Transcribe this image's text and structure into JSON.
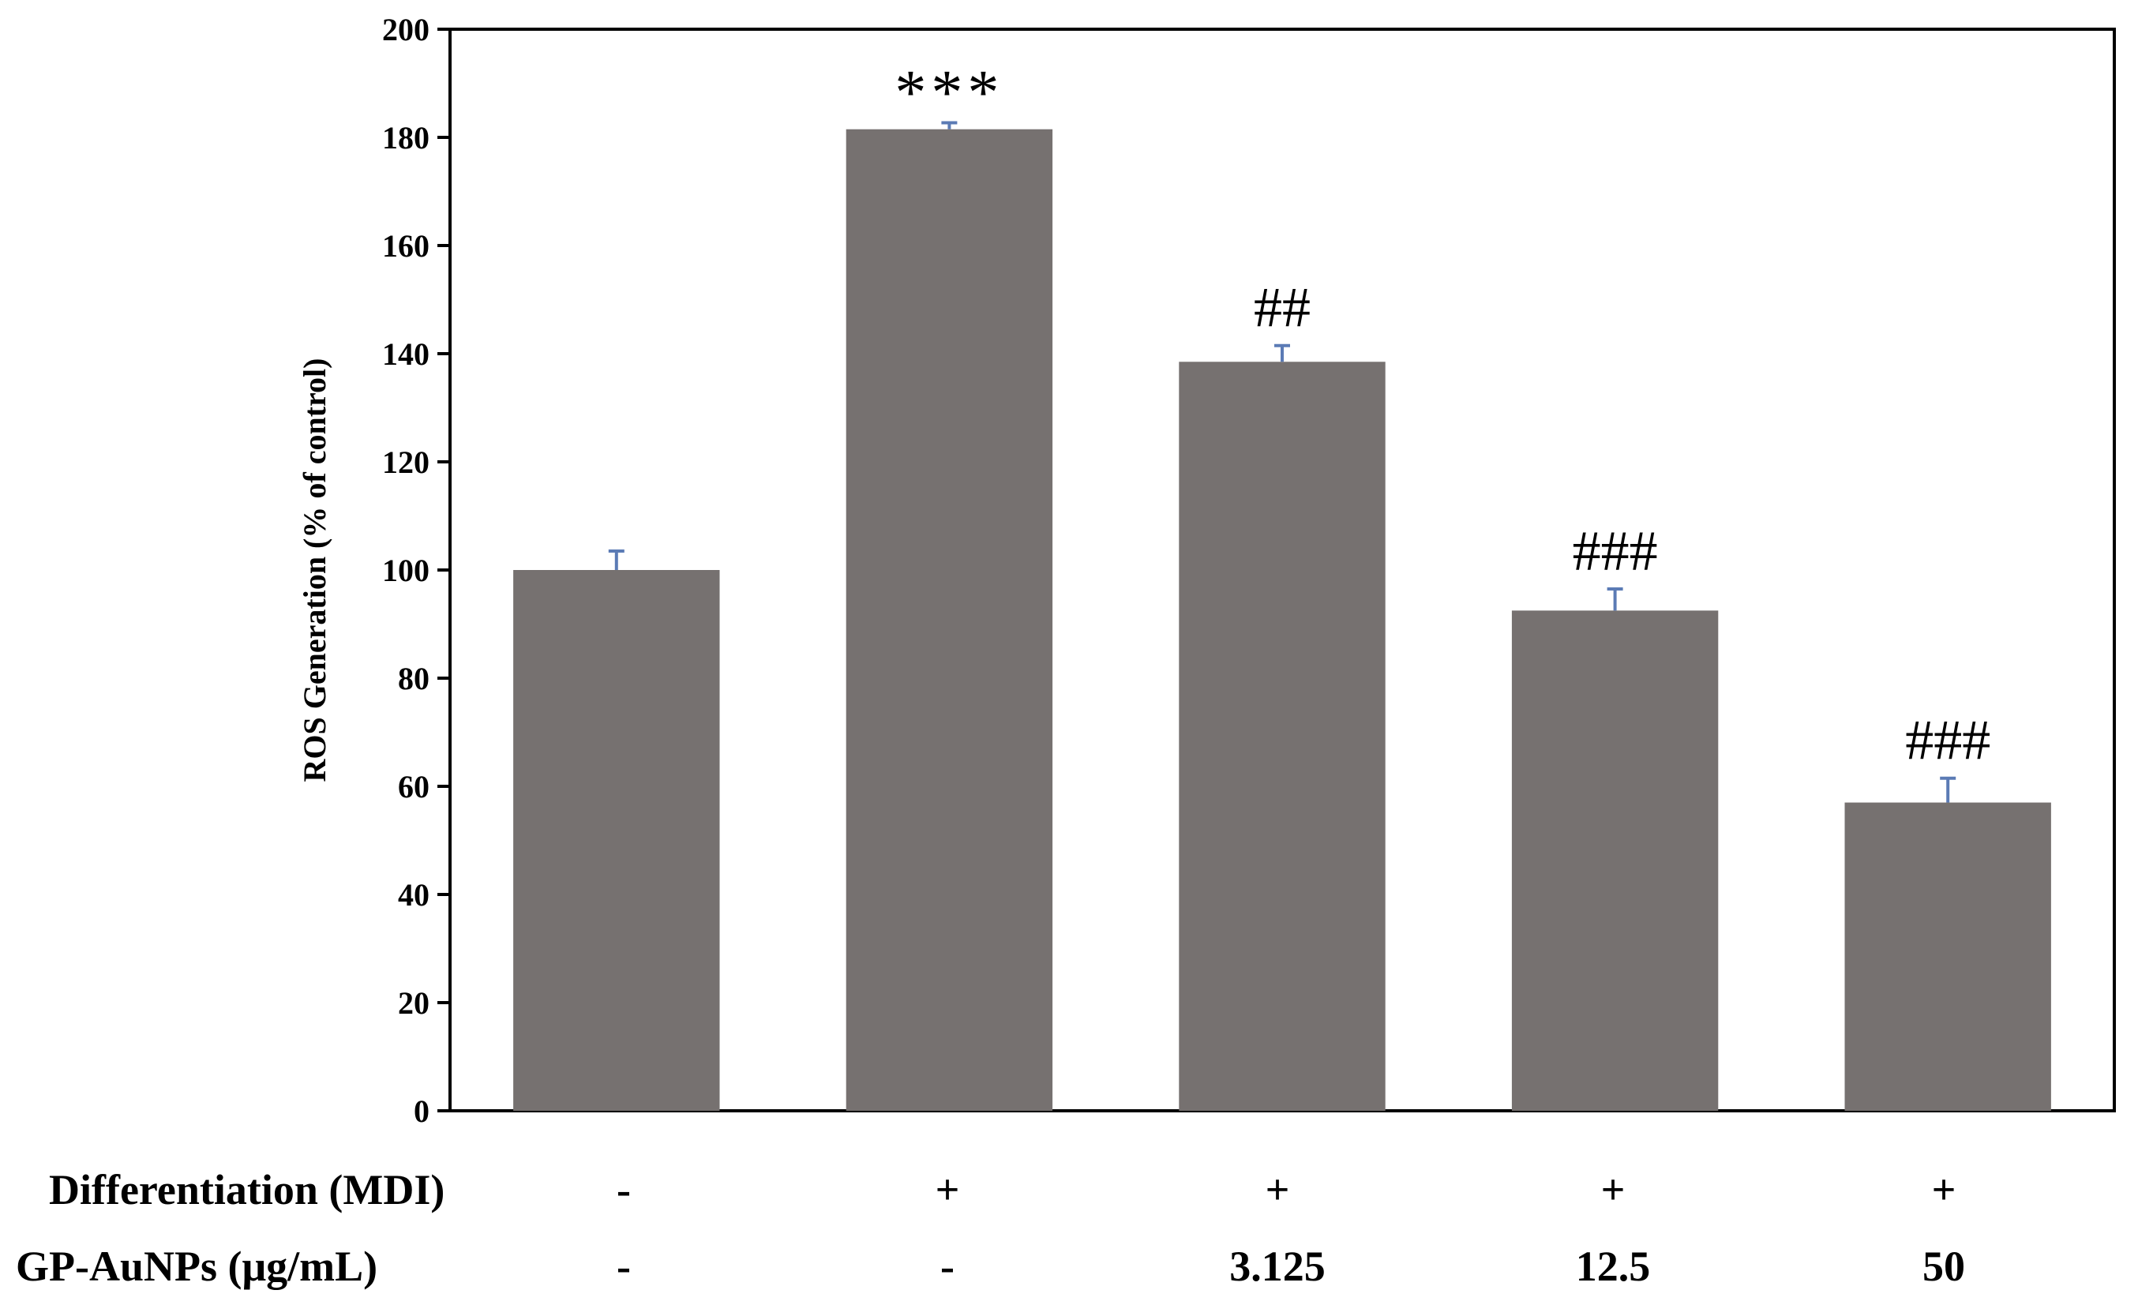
{
  "chart_data": {
    "type": "bar",
    "ylabel": "ROS Generation (% of control)",
    "ylim": [
      0,
      200
    ],
    "yticks": [
      0,
      20,
      40,
      60,
      80,
      100,
      120,
      140,
      160,
      180,
      200
    ],
    "grid": false,
    "legend": "none",
    "bar_color": "#767170",
    "error_bar_color": "#5b7bb5",
    "values": [
      100,
      181.5,
      138.5,
      92.5,
      57
    ],
    "errors": [
      3.5,
      1.2,
      3,
      4,
      4.5
    ],
    "annotations": [
      "",
      "***",
      "##",
      "###",
      "###"
    ],
    "condition_rows": [
      {
        "label": "Differentiation (MDI)",
        "values": [
          "-",
          "+",
          "+",
          "+",
          "+"
        ]
      },
      {
        "label": "GP-AuNPs (μg/mL)",
        "values": [
          "-",
          "-",
          "3.125",
          "12.5",
          "50"
        ]
      }
    ]
  }
}
